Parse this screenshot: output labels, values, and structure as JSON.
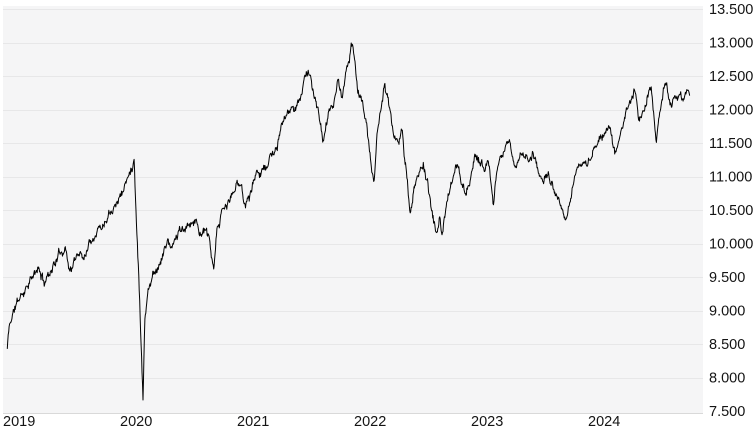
{
  "chart": {
    "colors": {
      "page_background": "#ffffff",
      "plot_background": "#f5f5f6",
      "gridline": "#e7e7e8",
      "bottom_border": "#d9d9d9",
      "line": "#000000",
      "axis_text": "#141414"
    },
    "y_axis": {
      "side": "right",
      "tick_labels": [
        "13.500",
        "13.000",
        "12.500",
        "12.000",
        "11.500",
        "11.000",
        "10.500",
        "10.000",
        "9.500",
        "9.000",
        "8.500",
        "8.000",
        "7.500"
      ]
    },
    "x_axis": {
      "side": "bottom",
      "tick_labels": [
        "2019",
        "2020",
        "2021",
        "2022",
        "2023",
        "2024"
      ]
    }
  },
  "chart_data": {
    "type": "line",
    "title": "",
    "xlabel": "",
    "ylabel": "",
    "legend": "none",
    "grid": "horizontal",
    "ylim": [
      7500,
      13500
    ],
    "y_tick_values": [
      7500,
      8000,
      8500,
      9000,
      9500,
      10000,
      10500,
      11000,
      11500,
      12000,
      12500,
      13000,
      13500
    ],
    "x_tick_years": [
      2019,
      2020,
      2021,
      2022,
      2023,
      2024
    ],
    "x_unit": "years_since_2019_jan_01",
    "points": [
      [
        0.045,
        8430
      ],
      [
        0.06,
        8750
      ],
      [
        0.1,
        9000
      ],
      [
        0.14,
        9150
      ],
      [
        0.19,
        9300
      ],
      [
        0.23,
        9450
      ],
      [
        0.27,
        9500
      ],
      [
        0.31,
        9620
      ],
      [
        0.36,
        9420
      ],
      [
        0.4,
        9560
      ],
      [
        0.44,
        9680
      ],
      [
        0.5,
        9870
      ],
      [
        0.54,
        9960
      ],
      [
        0.58,
        9600
      ],
      [
        0.62,
        9720
      ],
      [
        0.66,
        9890
      ],
      [
        0.7,
        9800
      ],
      [
        0.75,
        10050
      ],
      [
        0.79,
        10150
      ],
      [
        0.83,
        10250
      ],
      [
        0.87,
        10300
      ],
      [
        0.91,
        10480
      ],
      [
        0.96,
        10600
      ],
      [
        1.0,
        10680
      ],
      [
        1.04,
        10820
      ],
      [
        1.09,
        11050
      ],
      [
        1.13,
        11270
      ],
      [
        1.15,
        10300
      ],
      [
        1.17,
        9500
      ],
      [
        1.205,
        7700
      ],
      [
        1.22,
        8900
      ],
      [
        1.25,
        9300
      ],
      [
        1.29,
        9550
      ],
      [
        1.33,
        9650
      ],
      [
        1.38,
        9850
      ],
      [
        1.42,
        10080
      ],
      [
        1.44,
        9880
      ],
      [
        1.48,
        10050
      ],
      [
        1.52,
        10220
      ],
      [
        1.56,
        10150
      ],
      [
        1.6,
        10280
      ],
      [
        1.65,
        10380
      ],
      [
        1.69,
        10150
      ],
      [
        1.73,
        10200
      ],
      [
        1.77,
        10050
      ],
      [
        1.81,
        9550
      ],
      [
        1.84,
        10200
      ],
      [
        1.88,
        10470
      ],
      [
        1.92,
        10550
      ],
      [
        1.96,
        10700
      ],
      [
        2.0,
        10850
      ],
      [
        2.04,
        10900
      ],
      [
        2.08,
        10580
      ],
      [
        2.12,
        10750
      ],
      [
        2.17,
        11020
      ],
      [
        2.21,
        11130
      ],
      [
        2.25,
        11100
      ],
      [
        2.29,
        11280
      ],
      [
        2.33,
        11330
      ],
      [
        2.38,
        11620
      ],
      [
        2.42,
        11900
      ],
      [
        2.46,
        12000
      ],
      [
        2.5,
        11940
      ],
      [
        2.54,
        12150
      ],
      [
        2.58,
        12420
      ],
      [
        2.62,
        12570
      ],
      [
        2.66,
        12280
      ],
      [
        2.7,
        11980
      ],
      [
        2.74,
        11530
      ],
      [
        2.79,
        11900
      ],
      [
        2.83,
        12100
      ],
      [
        2.87,
        12420
      ],
      [
        2.9,
        12160
      ],
      [
        2.94,
        12520
      ],
      [
        2.98,
        12870
      ],
      [
        3.0,
        12970
      ],
      [
        3.04,
        12350
      ],
      [
        3.08,
        12100
      ],
      [
        3.12,
        11700
      ],
      [
        3.16,
        11100
      ],
      [
        3.18,
        10950
      ],
      [
        3.21,
        11750
      ],
      [
        3.25,
        12160
      ],
      [
        3.27,
        12330
      ],
      [
        3.31,
        12050
      ],
      [
        3.35,
        11650
      ],
      [
        3.38,
        11480
      ],
      [
        3.42,
        11660
      ],
      [
        3.46,
        11000
      ],
      [
        3.49,
        10420
      ],
      [
        3.53,
        10850
      ],
      [
        3.57,
        11120
      ],
      [
        3.6,
        11190
      ],
      [
        3.64,
        10880
      ],
      [
        3.68,
        10380
      ],
      [
        3.72,
        10150
      ],
      [
        3.74,
        10320
      ],
      [
        3.76,
        10120
      ],
      [
        3.8,
        10600
      ],
      [
        3.84,
        10850
      ],
      [
        3.88,
        11160
      ],
      [
        3.92,
        11020
      ],
      [
        3.96,
        10730
      ],
      [
        4.0,
        10960
      ],
      [
        4.04,
        11310
      ],
      [
        4.08,
        11230
      ],
      [
        4.12,
        11140
      ],
      [
        4.16,
        11230
      ],
      [
        4.2,
        10520
      ],
      [
        4.23,
        11050
      ],
      [
        4.27,
        11260
      ],
      [
        4.31,
        11480
      ],
      [
        4.34,
        11590
      ],
      [
        4.38,
        11120
      ],
      [
        4.42,
        11260
      ],
      [
        4.46,
        11330
      ],
      [
        4.5,
        11290
      ],
      [
        4.54,
        11340
      ],
      [
        4.58,
        11120
      ],
      [
        4.62,
        10930
      ],
      [
        4.66,
        11060
      ],
      [
        4.7,
        10860
      ],
      [
        4.75,
        10620
      ],
      [
        4.81,
        10330
      ],
      [
        4.85,
        10620
      ],
      [
        4.88,
        10870
      ],
      [
        4.92,
        11140
      ],
      [
        4.96,
        11230
      ],
      [
        5.0,
        11170
      ],
      [
        5.04,
        11320
      ],
      [
        5.08,
        11450
      ],
      [
        5.12,
        11560
      ],
      [
        5.16,
        11660
      ],
      [
        5.2,
        11730
      ],
      [
        5.24,
        11330
      ],
      [
        5.29,
        11620
      ],
      [
        5.33,
        11950
      ],
      [
        5.37,
        12090
      ],
      [
        5.41,
        12270
      ],
      [
        5.44,
        11890
      ],
      [
        5.48,
        11960
      ],
      [
        5.52,
        12210
      ],
      [
        5.55,
        12330
      ],
      [
        5.57,
        11980
      ],
      [
        5.59,
        11460
      ],
      [
        5.62,
        12010
      ],
      [
        5.645,
        12200
      ],
      [
        5.67,
        12470
      ],
      [
        5.71,
        12060
      ],
      [
        5.74,
        12160
      ],
      [
        5.78,
        12210
      ],
      [
        5.82,
        12150
      ],
      [
        5.85,
        12290
      ],
      [
        5.88,
        12270
      ]
    ]
  }
}
